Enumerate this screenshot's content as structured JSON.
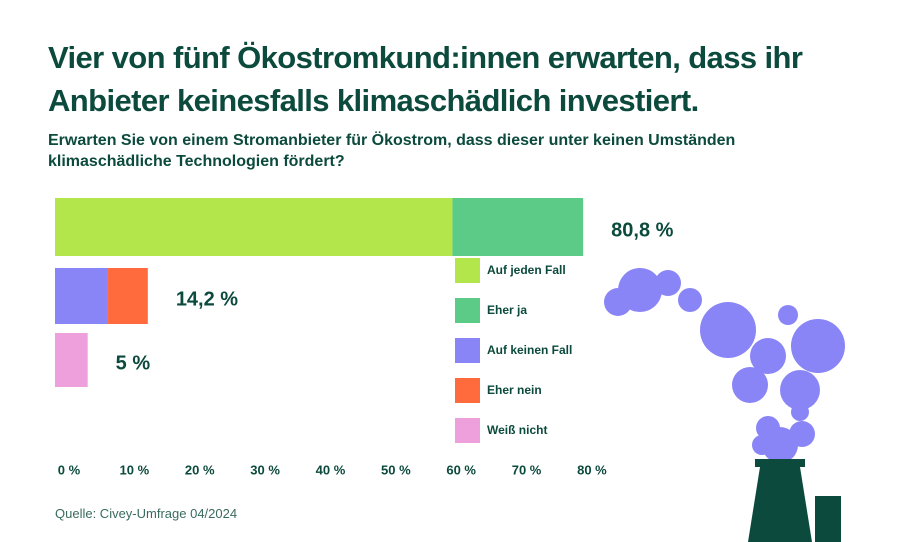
{
  "chart_data": {
    "type": "stacked-hbar",
    "title": "Vier von fünf Ökostromkund:innen erwarten, dass ihr Anbieter keinesfalls klimaschädlich investiert.",
    "subtitle": "Erwarten Sie von einem Stromanbieter für Ökostrom, dass dieser unter keinen Umständen klimaschädliche Technologien fördert?",
    "source": "Quelle: Civey-Umfrage 04/2024",
    "categories": [
      null,
      null,
      null
    ],
    "series": [
      {
        "name": "Auf jeden Fall",
        "color": "#b2e64b",
        "values": [
          60.8,
          null,
          null
        ]
      },
      {
        "name": "Eher ja",
        "color": "#5bcb87",
        "values": [
          20,
          null,
          null
        ]
      },
      {
        "name": "Auf keinen Fall",
        "color": "#8a85f6",
        "values": [
          null,
          8.1,
          null
        ]
      },
      {
        "name": "Eher nein",
        "color": "#ff6b3d",
        "values": [
          null,
          6.1,
          null
        ]
      },
      {
        "name": "Weiß nicht",
        "color": "#eea0dc",
        "values": [
          null,
          null,
          5
        ]
      }
    ],
    "row_labels": [
      "80,8 %",
      "14,2 %",
      "5 %"
    ],
    "xlim": [
      0,
      82
    ],
    "xticks": [
      {
        "value": 0,
        "label": "0 %"
      },
      {
        "value": 10,
        "label": "10 %"
      },
      {
        "value": 20,
        "label": "20 %"
      },
      {
        "value": 30,
        "label": "30 %"
      },
      {
        "value": 40,
        "label": "40 %"
      },
      {
        "value": 50,
        "label": "50 %"
      },
      {
        "value": 60,
        "label": "60 %"
      },
      {
        "value": 70,
        "label": "70 %"
      },
      {
        "value": 80,
        "label": "80 %"
      }
    ]
  }
}
